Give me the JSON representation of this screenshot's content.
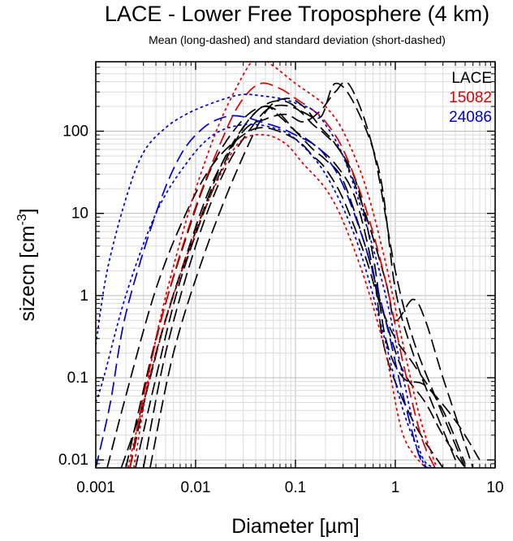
{
  "chart_data": {
    "type": "line",
    "title": "LACE - Lower Free Troposphere (4 km)",
    "subtitle": "Mean (long-dashed) and standard deviation (short-dashed)",
    "xlabel": "Diameter [µm]",
    "ylabel_main": "sizecn [cm",
    "ylabel_sup": "-3",
    "ylabel_tail": "]",
    "x_scale": "log",
    "y_scale": "log",
    "xlim": [
      0.001,
      10
    ],
    "ylim": [
      0.008,
      700
    ],
    "x_ticks": [
      0.001,
      0.01,
      0.1,
      1,
      10
    ],
    "x_tick_labels": [
      "0.001",
      "0.01",
      "0.1",
      "1",
      "10"
    ],
    "y_ticks": [
      0.01,
      0.1,
      1,
      10,
      100
    ],
    "y_tick_labels": [
      "0.01",
      "0.1",
      "1",
      "10",
      "100"
    ],
    "grid": true,
    "legend_position": "top-right",
    "legend": [
      {
        "label": "LACE",
        "color": "#000000"
      },
      {
        "label": "15082",
        "color": "#dd0000"
      },
      {
        "label": "24086",
        "color": "#0000cc"
      }
    ],
    "series": [
      {
        "name": "LACE",
        "color": "#000000",
        "style": "long-dashed",
        "x": [
          0.0018,
          0.003,
          0.005,
          0.01,
          0.02,
          0.04,
          0.06,
          0.1,
          0.15,
          0.2,
          0.3,
          0.5,
          0.8,
          1.2,
          2,
          3,
          5
        ],
        "y": [
          0.008,
          0.05,
          0.5,
          6,
          50,
          170,
          190,
          100,
          60,
          45,
          25,
          4,
          0.5,
          0.12,
          0.05,
          0.02,
          0.008
        ]
      },
      {
        "color": "#000000",
        "style": "long-dashed",
        "x": [
          0.0025,
          0.004,
          0.007,
          0.015,
          0.03,
          0.05,
          0.08,
          0.12,
          0.18,
          0.25,
          0.4,
          0.7,
          1,
          1.5,
          2.5,
          4
        ],
        "y": [
          0.008,
          0.1,
          1.5,
          20,
          110,
          210,
          230,
          170,
          150,
          380,
          200,
          30,
          1.2,
          0.2,
          0.04,
          0.01
        ]
      },
      {
        "color": "#000000",
        "style": "long-dashed",
        "x": [
          0.0022,
          0.004,
          0.008,
          0.015,
          0.03,
          0.05,
          0.08,
          0.12,
          0.18,
          0.25,
          0.35,
          0.6,
          1,
          1.5,
          2.5,
          5
        ],
        "y": [
          0.008,
          0.2,
          3,
          25,
          100,
          140,
          160,
          130,
          180,
          300,
          360,
          60,
          2,
          0.3,
          0.06,
          0.008
        ]
      },
      {
        "color": "#000000",
        "style": "long-dashed",
        "x": [
          0.0013,
          0.002,
          0.004,
          0.008,
          0.015,
          0.03,
          0.05,
          0.1,
          0.15,
          0.2,
          0.3,
          0.5,
          0.7,
          1,
          1.5,
          3,
          5
        ],
        "y": [
          0.008,
          0.06,
          1.2,
          10,
          40,
          90,
          110,
          80,
          50,
          35,
          15,
          3,
          0.8,
          0.3,
          0.15,
          0.04,
          0.009
        ]
      },
      {
        "color": "#000000",
        "style": "long-dashed",
        "x": [
          0.003,
          0.005,
          0.01,
          0.02,
          0.04,
          0.06,
          0.1,
          0.15,
          0.2,
          0.3,
          0.5,
          0.8,
          1,
          1.5,
          2,
          3,
          6
        ],
        "y": [
          0.008,
          0.2,
          4,
          35,
          130,
          200,
          190,
          120,
          90,
          50,
          10,
          1.5,
          0.5,
          0.9,
          0.5,
          0.1,
          0.008
        ]
      },
      {
        "color": "#000000",
        "style": "long-dashed",
        "x": [
          0.0035,
          0.006,
          0.012,
          0.025,
          0.05,
          0.08,
          0.12,
          0.18,
          0.25,
          0.4,
          0.6,
          0.8,
          1.2,
          2,
          4,
          7
        ],
        "y": [
          0.008,
          0.2,
          3,
          30,
          170,
          250,
          200,
          110,
          70,
          25,
          3,
          0.3,
          0.1,
          0.08,
          0.03,
          0.01
        ]
      },
      {
        "color": "#000000",
        "style": "long-dashed",
        "x": [
          0.002,
          0.004,
          0.008,
          0.015,
          0.03,
          0.05,
          0.07,
          0.1,
          0.15,
          0.25,
          0.4,
          0.6,
          0.8,
          1.5,
          3
        ],
        "y": [
          0.008,
          0.3,
          5,
          40,
          140,
          200,
          150,
          100,
          70,
          40,
          15,
          2,
          0.2,
          0.03,
          0.008
        ]
      },
      {
        "name": "15082",
        "color": "#dd0000",
        "style": "long-dashed",
        "x": [
          0.0022,
          0.003,
          0.005,
          0.01,
          0.02,
          0.03,
          0.045,
          0.07,
          0.1,
          0.15,
          0.2,
          0.3,
          0.5,
          0.8,
          1.2,
          1.8,
          2.5
        ],
        "y": [
          0.008,
          0.06,
          0.8,
          12,
          100,
          250,
          380,
          330,
          250,
          180,
          130,
          60,
          12,
          1.5,
          0.15,
          0.02,
          0.008
        ]
      },
      {
        "color": "#dd0000",
        "style": "short-dashed",
        "x": [
          0.0024,
          0.004,
          0.008,
          0.015,
          0.025,
          0.04,
          0.06,
          0.1,
          0.15,
          0.2,
          0.3,
          0.5,
          0.8,
          1.2,
          1.8,
          2.6
        ],
        "y": [
          0.008,
          0.3,
          8,
          80,
          320,
          780,
          620,
          380,
          270,
          200,
          100,
          22,
          2.5,
          0.25,
          0.03,
          0.008
        ]
      },
      {
        "color": "#dd0000",
        "style": "short-dashed",
        "x": [
          0.0021,
          0.003,
          0.005,
          0.01,
          0.02,
          0.03,
          0.05,
          0.08,
          0.12,
          0.2,
          0.3,
          0.5,
          0.8,
          1.2,
          2
        ],
        "y": [
          0.008,
          0.05,
          0.5,
          6,
          40,
          80,
          90,
          70,
          40,
          20,
          8,
          1.5,
          0.2,
          0.02,
          0.008
        ]
      },
      {
        "name": "24086",
        "color": "#0000cc",
        "style": "long-dashed",
        "x": [
          0.001,
          0.0014,
          0.002,
          0.004,
          0.007,
          0.012,
          0.02,
          0.03,
          0.045,
          0.07,
          0.1,
          0.15,
          0.2,
          0.3,
          0.5,
          0.8,
          1.2,
          1.8,
          2.5
        ],
        "y": [
          0.008,
          0.05,
          0.6,
          10,
          50,
          110,
          150,
          150,
          130,
          110,
          90,
          70,
          50,
          22,
          4,
          0.5,
          0.06,
          0.01,
          0.008
        ]
      },
      {
        "color": "#0000cc",
        "style": "short-dashed",
        "x": [
          0.001,
          0.0013,
          0.002,
          0.003,
          0.005,
          0.008,
          0.012,
          0.02,
          0.03,
          0.045,
          0.07,
          0.1,
          0.15,
          0.2,
          0.3,
          0.5,
          0.8,
          1.2,
          1.8,
          2.5
        ],
        "y": [
          0.25,
          2,
          15,
          55,
          110,
          160,
          200,
          250,
          280,
          270,
          250,
          220,
          180,
          120,
          50,
          8,
          1,
          0.1,
          0.012,
          0.008
        ]
      },
      {
        "color": "#0000cc",
        "style": "short-dashed",
        "x": [
          0.001,
          0.0012,
          0.002,
          0.004,
          0.008,
          0.015,
          0.03,
          0.06,
          0.1,
          0.2,
          0.4,
          0.7,
          1.2,
          2
        ],
        "y": [
          0.05,
          0.1,
          1,
          10,
          40,
          90,
          120,
          110,
          80,
          30,
          5,
          0.5,
          0.04,
          0.008
        ]
      }
    ]
  }
}
